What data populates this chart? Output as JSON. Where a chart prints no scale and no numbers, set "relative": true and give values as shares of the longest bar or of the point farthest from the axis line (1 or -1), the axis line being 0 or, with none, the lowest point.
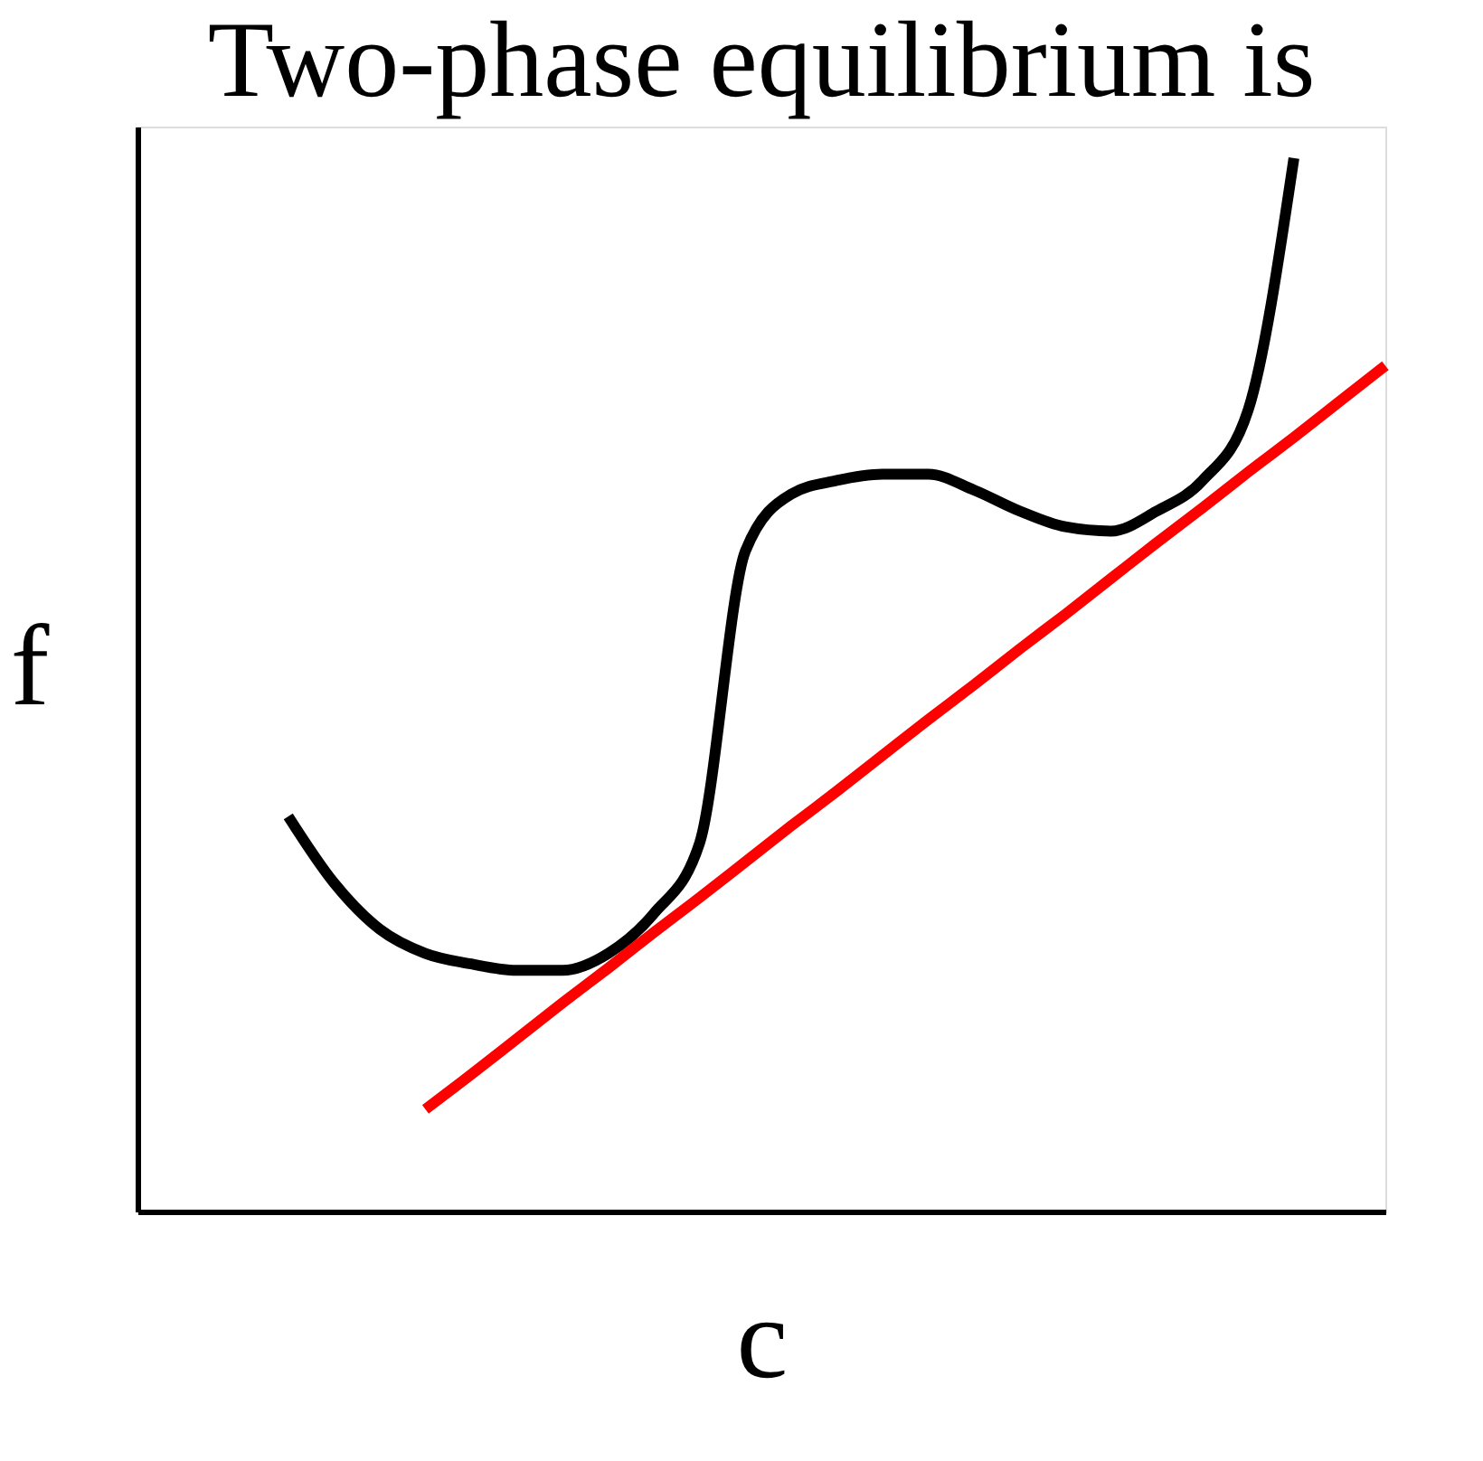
{
  "chart_data": {
    "type": "line",
    "title": "Two-phase equilibrium is",
    "xlabel": "c",
    "ylabel": "f",
    "relative": true,
    "grid": false,
    "legend": false,
    "line_style": "solid",
    "marker": "none",
    "categories": [
      null,
      null,
      null,
      null,
      null,
      null,
      null,
      null,
      null,
      null,
      null,
      null,
      null,
      null,
      null,
      null,
      null,
      null,
      null,
      null,
      null,
      null,
      null,
      null,
      null
    ],
    "series": [
      {
        "color": "#000000",
        "values": [
          0.375,
          0.312,
          0.268,
          0.245,
          0.235,
          0.229,
          0.229,
          0.245,
          0.283,
          0.35,
          0.627,
          0.681,
          0.694,
          0.7,
          0.7,
          0.685,
          0.665,
          0.65,
          0.646,
          0.665,
          0.694,
          0.761,
          1.0,
          null,
          null
        ]
      },
      {
        "color": "#ff0000",
        "values": [
          null,
          null,
          null,
          0.097,
          0.13,
          0.164,
          0.198,
          0.231,
          0.265,
          0.298,
          0.332,
          0.366,
          0.399,
          0.433,
          0.467,
          0.5,
          0.534,
          0.567,
          0.601,
          0.635,
          0.668,
          0.702,
          0.735,
          0.769,
          0.803
        ]
      }
    ]
  }
}
